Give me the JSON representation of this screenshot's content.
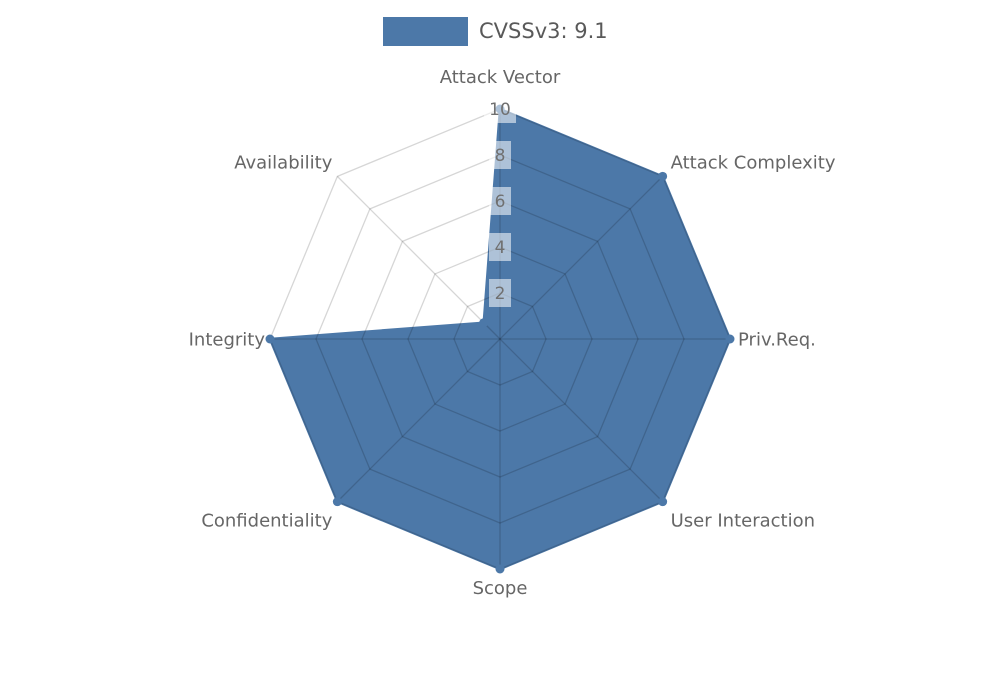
{
  "legend": {
    "label": "CVSSv3: 9.1",
    "swatch_color": "#4c78a8"
  },
  "chart_data": {
    "type": "radar",
    "categories": [
      "Attack Vector",
      "Attack Complexity",
      "Priv.Req.",
      "User Interaction",
      "Scope",
      "Confidentiality",
      "Integrity",
      "Availability"
    ],
    "series": [
      {
        "name": "CVSSv3: 9.1",
        "values": [
          10,
          10,
          10,
          10,
          10,
          10,
          10,
          1
        ]
      }
    ],
    "ticks": [
      2,
      4,
      6,
      8,
      10
    ],
    "rlim": [
      0,
      10
    ],
    "start_angle_deg": 90,
    "direction": "clockwise",
    "grid": true,
    "legend_position": "top-center",
    "colors": {
      "series": "#4c78a8",
      "grid_line": "rgba(0,0,0,0.16)",
      "axis_label": "#666666",
      "tick_label": "#707070",
      "tick_box": "rgba(255,255,255,0.55)",
      "legend_text": "#595959"
    }
  }
}
